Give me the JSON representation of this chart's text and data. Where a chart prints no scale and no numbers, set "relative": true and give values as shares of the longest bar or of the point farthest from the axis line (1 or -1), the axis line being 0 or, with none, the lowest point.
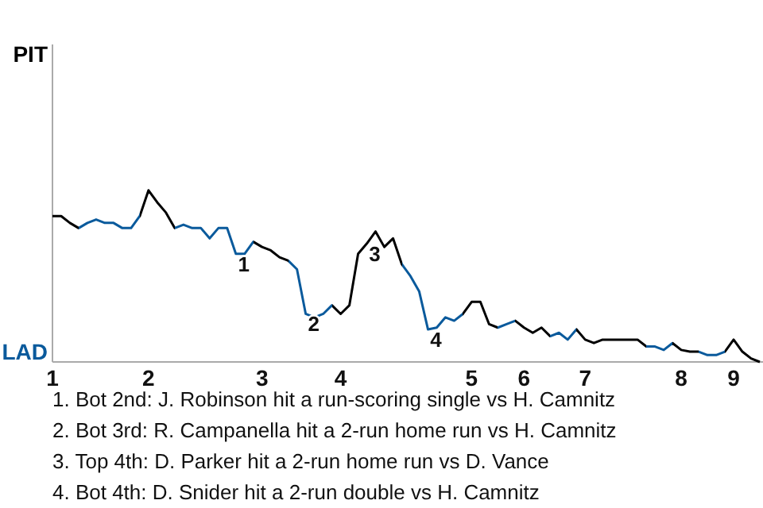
{
  "chart_data": {
    "type": "line",
    "relative": true,
    "categories": [
      "1",
      null,
      null,
      null,
      null,
      null,
      null,
      null,
      null,
      null,
      null,
      "2",
      null,
      null,
      null,
      null,
      null,
      null,
      null,
      null,
      null,
      null,
      null,
      null,
      "3",
      null,
      null,
      null,
      null,
      null,
      null,
      null,
      null,
      "4",
      null,
      null,
      null,
      null,
      null,
      null,
      null,
      null,
      null,
      null,
      null,
      null,
      null,
      null,
      "5",
      null,
      null,
      null,
      null,
      null,
      "6",
      null,
      null,
      null,
      null,
      null,
      null,
      "7",
      null,
      null,
      null,
      null,
      null,
      null,
      null,
      null,
      null,
      null,
      "8",
      null,
      null,
      null,
      null,
      null,
      "9",
      null,
      null,
      null
    ],
    "line_style": "solid",
    "marker": "none",
    "series": [
      {
        "color": "#000000",
        "values": [
          0.85,
          0.85,
          0.81,
          0.78,
          0.81,
          0.83,
          0.81,
          0.81,
          0.78,
          0.78,
          0.85,
          1,
          0.93,
          0.87,
          0.78,
          0.8,
          0.78,
          0.78,
          0.72,
          0.78,
          0.78,
          0.63,
          0.63,
          0.7,
          0.67,
          0.65,
          0.61,
          0.59,
          0.54,
          0.28,
          0.26,
          0.28,
          0.33,
          0.28,
          0.33,
          0.63,
          0.69,
          0.76,
          0.67,
          0.72,
          0.57,
          0.5,
          0.41,
          0.19,
          0.2,
          0.26,
          0.24,
          0.28,
          0.35,
          0.35,
          0.22,
          0.2,
          0.22,
          0.24,
          0.2,
          0.17,
          0.2,
          0.15,
          0.17,
          0.13,
          0.19,
          0.13,
          0.11,
          0.13,
          0.13,
          0.13,
          0.13,
          0.13,
          0.09,
          0.09,
          0.07,
          0.11,
          0.07,
          0.06,
          0.06,
          0.04,
          0.04,
          0.06,
          0.13,
          0.06,
          0.02,
          0
        ],
        "colors": [
          "#000000",
          "#000000",
          "#000000",
          "#0a5a9c",
          "#0a5a9c",
          "#0a5a9c",
          "#0a5a9c",
          "#0a5a9c",
          "#0a5a9c",
          "#0a5a9c",
          "#000000",
          "#000000",
          "#000000",
          "#000000",
          "#0a5a9c",
          "#0a5a9c",
          "#0a5a9c",
          "#0a5a9c",
          "#0a5a9c",
          "#0a5a9c",
          "#0a5a9c",
          "#0a5a9c",
          "#0a5a9c",
          "#000000",
          "#000000",
          "#000000",
          "#000000",
          "#0a5a9c",
          "#0a5a9c",
          "#0a5a9c",
          "#0a5a9c",
          "#0a5a9c",
          "#000000",
          "#000000",
          "#000000",
          "#000000",
          "#000000",
          "#000000",
          "#000000",
          "#000000",
          "#0a5a9c",
          "#0a5a9c",
          "#0a5a9c",
          "#0a5a9c",
          "#0a5a9c",
          "#0a5a9c",
          "#0a5a9c",
          "#000000",
          "#000000",
          "#000000",
          "#000000",
          "#0a5a9c",
          "#0a5a9c",
          "#000000",
          "#000000",
          "#000000",
          "#000000",
          "#0a5a9c",
          "#0a5a9c",
          "#0a5a9c",
          "#000000",
          "#000000",
          "#000000",
          "#000000",
          "#000000",
          "#000000",
          "#000000",
          "#000000",
          "#0a5a9c",
          "#0a5a9c",
          "#0a5a9c",
          "#000000",
          "#000000",
          "#000000",
          "#0a5a9c",
          "#0a5a9c",
          "#0a5a9c",
          "#000000",
          "#000000",
          "#000000",
          "#000000",
          "#000000"
        ]
      }
    ],
    "annotations": [
      "PIT",
      "LAD",
      {
        "text": "1",
        "y": 0.63
      },
      {
        "text": "2",
        "y": 0.28
      },
      {
        "text": "3",
        "y": 0.69
      },
      {
        "text": "4",
        "y": 0.19
      },
      "1. Bot 2nd: J. Robinson hit a run-scoring single vs H. Camnitz",
      "2. Bot 3rd: R. Campanella hit a 2-run home run vs H. Camnitz",
      "3. Top 4th: D. Parker hit a 2-run home run vs D. Vance",
      "4. Bot 4th: D. Snider hit a 2-run double vs H. Camnitz"
    ]
  }
}
